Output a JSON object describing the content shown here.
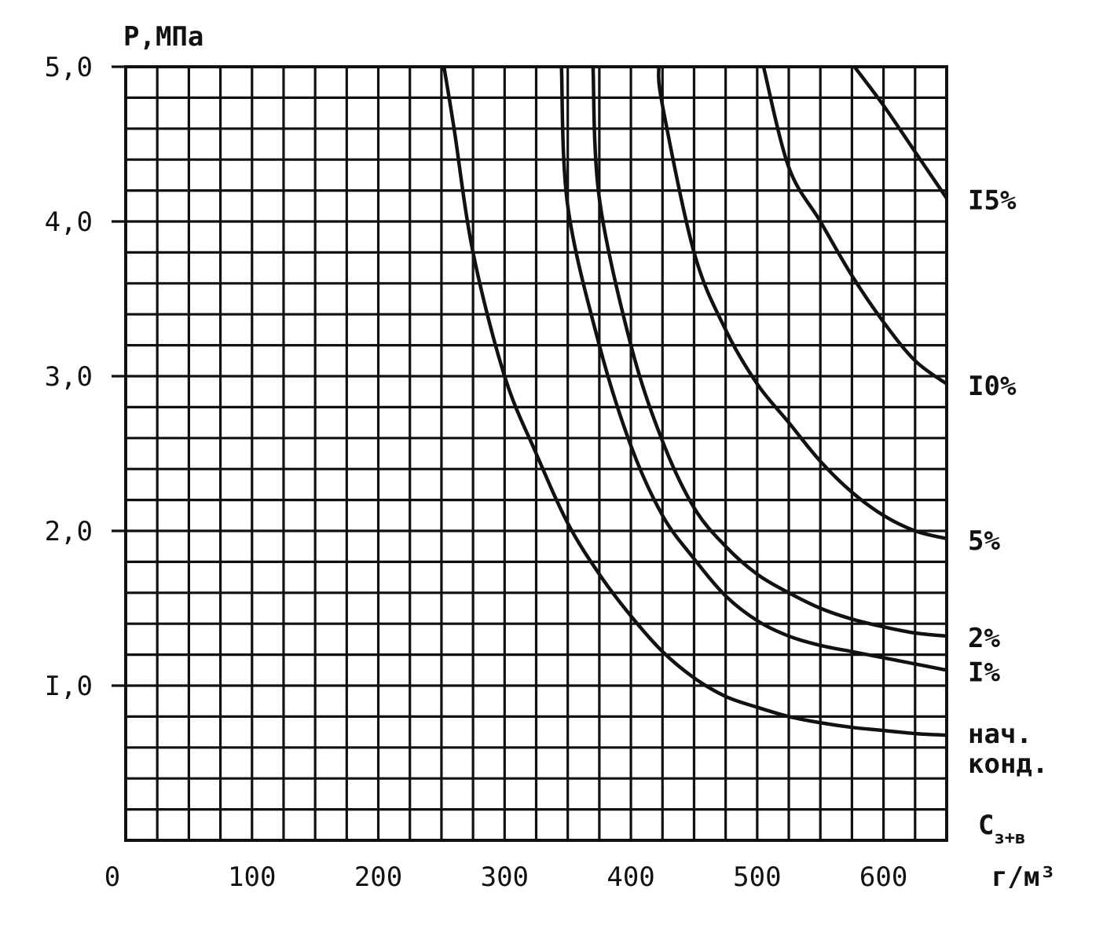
{
  "chart_data": {
    "type": "line",
    "title": "",
    "ylabel": "Р,МПа",
    "xlabel_main": "С",
    "xlabel_sub": "з+в",
    "xlabel_unit": "г/м³",
    "xlim": [
      0,
      650
    ],
    "ylim": [
      0,
      5.0
    ],
    "x_ticks": [
      {
        "value": 0,
        "label": "0"
      },
      {
        "value": 100,
        "label": "100"
      },
      {
        "value": 200,
        "label": "200"
      },
      {
        "value": 300,
        "label": "300"
      },
      {
        "value": 400,
        "label": "400"
      },
      {
        "value": 500,
        "label": "500"
      },
      {
        "value": 600,
        "label": "600"
      }
    ],
    "y_ticks": [
      {
        "value": 1.0,
        "label": "I,0"
      },
      {
        "value": 2.0,
        "label": "2,0"
      },
      {
        "value": 3.0,
        "label": "3,0"
      },
      {
        "value": 4.0,
        "label": "4,0"
      },
      {
        "value": 5.0,
        "label": "5,0"
      }
    ],
    "grid": true,
    "grid_x_step": 25,
    "grid_y_step": 0.2,
    "series": [
      {
        "name": "нач. конд.",
        "label_lines": [
          "нач.",
          "конд."
        ],
        "x": [
          252,
          260,
          275,
          300,
          325,
          350,
          375,
          400,
          425,
          450,
          475,
          500,
          525,
          550,
          575,
          600,
          625,
          650
        ],
        "y": [
          5.0,
          4.6,
          3.8,
          3.0,
          2.5,
          2.05,
          1.72,
          1.45,
          1.22,
          1.05,
          0.93,
          0.86,
          0.8,
          0.76,
          0.73,
          0.71,
          0.69,
          0.68
        ]
      },
      {
        "name": "I%",
        "label_lines": [
          "I%"
        ],
        "x": [
          345,
          350,
          375,
          400,
          425,
          450,
          475,
          500,
          525,
          550,
          575,
          600,
          625,
          650
        ],
        "y": [
          5.0,
          4.1,
          3.2,
          2.55,
          2.1,
          1.82,
          1.58,
          1.42,
          1.32,
          1.26,
          1.22,
          1.18,
          1.14,
          1.1
        ]
      },
      {
        "name": "2%",
        "label_lines": [
          "2%"
        ],
        "x": [
          370,
          375,
          400,
          425,
          450,
          475,
          500,
          525,
          550,
          575,
          600,
          625,
          650
        ],
        "y": [
          5.0,
          4.15,
          3.2,
          2.58,
          2.15,
          1.9,
          1.72,
          1.6,
          1.5,
          1.43,
          1.38,
          1.34,
          1.32
        ]
      },
      {
        "name": "5%",
        "label_lines": [
          "5%"
        ],
        "x": [
          422,
          425,
          450,
          475,
          500,
          525,
          550,
          575,
          600,
          625,
          650
        ],
        "y": [
          5.0,
          4.75,
          3.8,
          3.3,
          2.95,
          2.7,
          2.45,
          2.25,
          2.1,
          2.0,
          1.95
        ]
      },
      {
        "name": "I0%",
        "label_lines": [
          "I0%"
        ],
        "x": [
          505,
          525,
          550,
          575,
          600,
          625,
          650
        ],
        "y": [
          5.0,
          4.35,
          4.0,
          3.65,
          3.35,
          3.1,
          2.95
        ]
      },
      {
        "name": "I5%",
        "label_lines": [
          "I5%"
        ],
        "x": [
          577,
          600,
          625,
          650
        ],
        "y": [
          5.0,
          4.75,
          4.45,
          4.15
        ]
      }
    ]
  }
}
